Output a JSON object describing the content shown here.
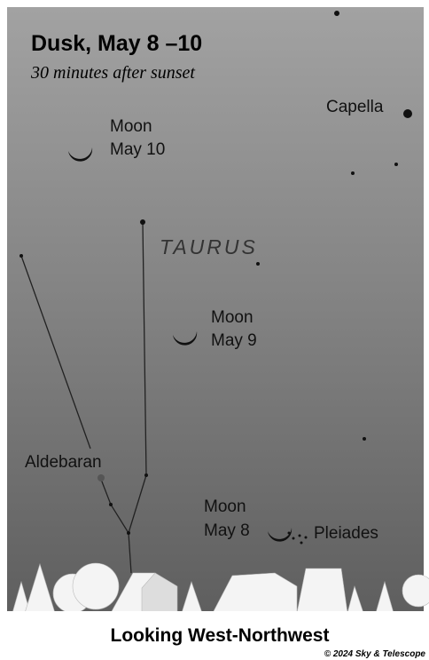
{
  "header": {
    "title": "Dusk, May 8 –10",
    "subtitle": "30 minutes after sunset"
  },
  "labels": {
    "capella": "Capella",
    "taurus": "TAURUS",
    "aldebaran": "Aldebaran",
    "pleiades": "Pleiades"
  },
  "moons": [
    {
      "line1": "Moon",
      "line2": "May 10"
    },
    {
      "line1": "Moon",
      "line2": "May 9"
    },
    {
      "line1": "Moon",
      "line2": "May 8"
    }
  ],
  "footer": {
    "direction": "Looking West-Northwest",
    "credit": "© 2024 Sky & Telescope"
  }
}
